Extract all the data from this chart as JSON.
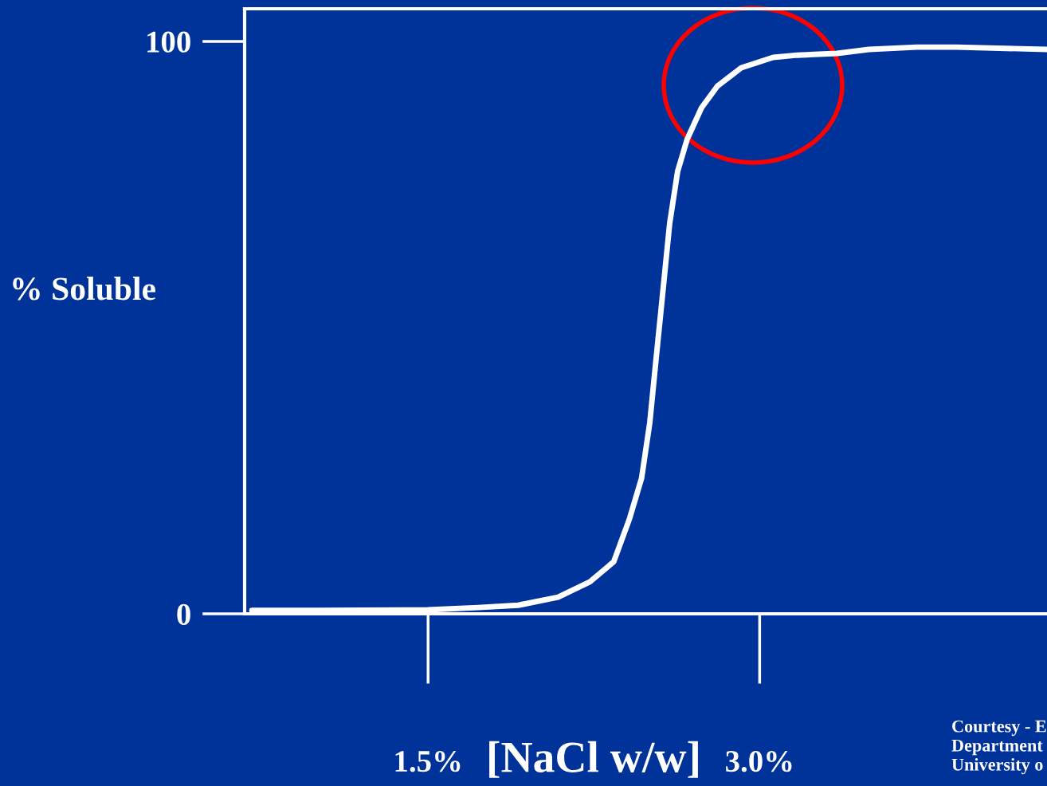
{
  "chart_data": {
    "type": "line",
    "xlabel": "[NaCl w/w]",
    "ylabel": "% Soluble",
    "xlim": [
      0.67,
      4.3
    ],
    "ylim": [
      0,
      105.7
    ],
    "xticks": [
      {
        "value": 1.5,
        "label": "1.5%"
      },
      {
        "value": 3.0,
        "label": "3.0%"
      }
    ],
    "yticks": [
      0,
      100
    ],
    "grid": false,
    "line_style": "solid",
    "series": [
      {
        "color": "#ffffff",
        "x": [
          0.703,
          1.006,
          1.5,
          1.727,
          1.908,
          2.088,
          2.232,
          2.34,
          2.412,
          2.466,
          2.503,
          2.528,
          2.557,
          2.593,
          2.629,
          2.672,
          2.737,
          2.809,
          2.917,
          3.061,
          3.17,
          3.35,
          3.494,
          3.711,
          3.891,
          4.3
        ],
        "values": [
          0.6,
          0.6,
          0.7,
          1.1,
          1.5,
          2.9,
          5.6,
          9.1,
          16.7,
          23.7,
          33.4,
          43.2,
          54.3,
          68.2,
          77.3,
          82.9,
          88.4,
          92.2,
          95.4,
          97.2,
          97.6,
          97.9,
          98.6,
          99.0,
          99.0,
          98.6
        ]
      }
    ],
    "annotations": [
      "Courtesy - E\nDepartment\nUniversity o"
    ]
  }
}
